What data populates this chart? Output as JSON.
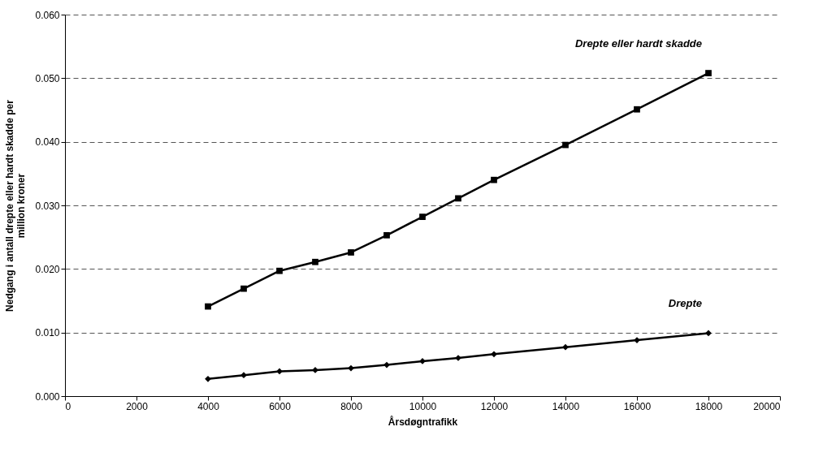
{
  "chart_data": {
    "type": "line",
    "xlabel": "Årsdøgntrafikk",
    "ylabel": "Nedgang i antall drepte eller hardt skadde per million kroner",
    "x": [
      4000,
      5000,
      6000,
      7000,
      8000,
      9000,
      10000,
      11000,
      12000,
      14000,
      16000,
      18000
    ],
    "series": [
      {
        "name": "Drepte eller hardt skadde",
        "color": "#000000",
        "marker": "square",
        "values": [
          0.0141,
          0.0169,
          0.0197,
          0.0211,
          0.0226,
          0.0253,
          0.0282,
          0.0311,
          0.034,
          0.0395,
          0.0451,
          0.0508
        ]
      },
      {
        "name": "Drepte",
        "color": "#000000",
        "marker": "diamond",
        "values": [
          0.0027,
          0.0033,
          0.0039,
          0.0041,
          0.0044,
          0.0049,
          0.0055,
          0.006,
          0.0066,
          0.0077,
          0.0088,
          0.0099
        ]
      }
    ],
    "xlim": [
      0,
      20000
    ],
    "xticks": [
      0,
      2000,
      4000,
      6000,
      8000,
      10000,
      12000,
      14000,
      16000,
      18000,
      20000
    ],
    "ylim": [
      0,
      0.06
    ],
    "yticks": [
      {
        "value": 0,
        "label": "0.000"
      },
      {
        "value": 0.01,
        "label": "0.010"
      },
      {
        "value": 0.02,
        "label": "0.020"
      },
      {
        "value": 0.03,
        "label": "0.030"
      },
      {
        "value": 0.04,
        "label": "0.040"
      },
      {
        "value": 0.05,
        "label": "0.050"
      },
      {
        "value": 0.06,
        "label": "0.060"
      }
    ],
    "grid": "y",
    "line_style": "solid"
  }
}
